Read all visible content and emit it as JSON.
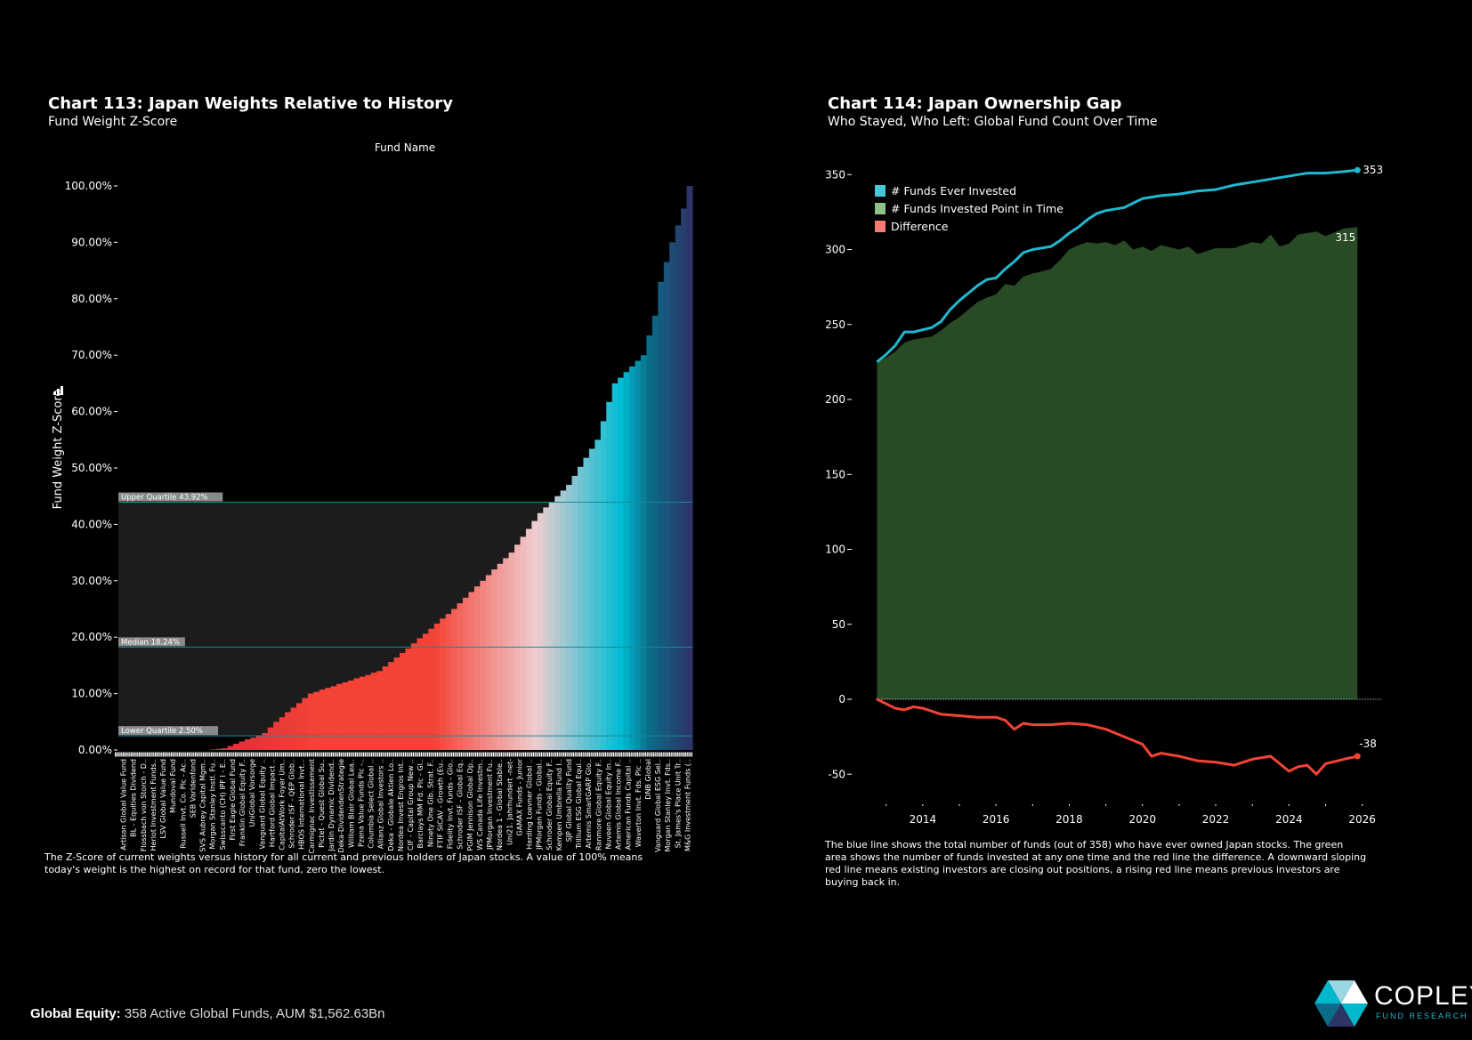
{
  "left": {
    "title": "Chart 113:  Japan Weights Relative to History",
    "subtitle": "Fund Weight Z-Score",
    "caption": "The Z-Score of current weights versus history for all current and previous holders of Japan stocks.  A value of 100% means today's weight is the highest on record for that fund, zero the lowest."
  },
  "right": {
    "title": "Chart 114:  Japan Ownership Gap",
    "subtitle": "Who Stayed, Who Left: Global Fund Count Over Time",
    "caption": "The blue line shows the total number of funds (out of 358) who have ever owned Japan stocks.  The green area shows the number of funds invested at any one time and the red line the difference.  A downward sloping red line means existing investors are closing out positions, a rising red line means previous investors are buying back in."
  },
  "footer": {
    "label": "Global Equity:",
    "text": "358 Active Global Funds, AUM $1,562.63Bn"
  },
  "logo": {
    "name": "COPLEY",
    "sub": "FUND RESEARCH"
  },
  "chart_data": [
    {
      "type": "bar",
      "xlabel": "Fund Name",
      "ylabel": "Fund Weight  Z-Score",
      "ylim": [
        0,
        100
      ],
      "yticks": [
        "0.00%",
        "10.00%",
        "20.00%",
        "30.00%",
        "40.00%",
        "50.00%",
        "60.00%",
        "70.00%",
        "80.00%",
        "90.00%",
        "100.00%"
      ],
      "reference_lines": [
        {
          "label": "Upper Quartile 43.92%",
          "value": 43.92
        },
        {
          "label": "Median 18.24%",
          "value": 18.24
        },
        {
          "label": "Lower Quartile 2.50%",
          "value": 2.5
        }
      ],
      "category_labels": [
        "Artisan Global Value Fund",
        "BL - Equities Dividend",
        "Flossbach von Storch - D..",
        "Heriot Investment Funds..",
        "LSV Global Value Fund",
        "Mundoval Fund",
        "Russell Invt. Co. Plc - Ac..",
        "SEB Varldenfond",
        "SVS Aubrey Capital Mgm..",
        "Morgan Stanley Instl. Fu..",
        "Swisscanto (CH) IPF I - E..",
        "First Eagle Global Fund",
        "Franklin Global Equity F..",
        "UniGlobal Vorsorge",
        "Vanguard Global Equity ..",
        "Hartford Global Impact ..",
        "CapitalAtWork Foyer Um..",
        "Schroder ISF - QEP Glob..",
        "HBOS International Invt...",
        "Carmignac Investissement",
        "Pictet - Quest Global Su..",
        "Jardin Dynamic Dividend..",
        "Deka-DividendenStrategie",
        "William Blair Global Lea..",
        "Pzena Value Funds Plc -..",
        "Columbia Select Global ..",
        "Allianz Global Investors ..",
        "Deka - Globale Aktien Lo..",
        "Nordea Invest Engros Int..",
        "CIF - Capital Group New ..",
        "Barclays MM Fd. Plc - Gl..",
        "Ninety One Glb. Strat. F..",
        "FTIF SICAV - Growth (Eu..",
        "Fidelity Invt. Funds - Glo..",
        "Schroder ISF - Global Eq..",
        "PGIM Jennison Global Op..",
        "WS Canada Life Investm..",
        "JPMorgan Investment Fu..",
        "Nordea 1 - Global Stable..",
        "Uni21. Jahrhundert -net-",
        "GAMAX Funds - Junior",
        "Harding Loevner Global ..",
        "JPMorgan Funds - Global..",
        "Schroder Global Equity F..",
        "Kempen Umbrella Fund I..",
        "SJP Global Quality Fund",
        "Trillium ESG Global Equi..",
        "Artemis SmartGARP Glo..",
        "Ranmore Global Equity F..",
        "Nuveen Global Equity In..",
        "Artemis Global Income F..",
        "American Funds Capital ..",
        "Waverton Invt. Fds. Plc ..",
        "DNB Global",
        "Vanguard Global ESG Sel..",
        "Morgan Stanley Invt. Fds..",
        "St. James's Place Unit Tr..",
        "M&G Investment Funds (.."
      ],
      "values": [
        0,
        0,
        0,
        0,
        0,
        0,
        0,
        0,
        0,
        0,
        0,
        0,
        0,
        0,
        0,
        0,
        0.1,
        0.2,
        0.3,
        0.7,
        1.1,
        1.5,
        1.9,
        2.2,
        2.6,
        3.0,
        4.0,
        5.0,
        5.8,
        6.7,
        7.5,
        8.3,
        9.2,
        10.0,
        10.3,
        10.7,
        11.0,
        11.3,
        11.7,
        12.0,
        12.3,
        12.7,
        13.0,
        13.3,
        13.7,
        14.0,
        14.8,
        15.6,
        16.4,
        17.2,
        18.0,
        18.9,
        19.8,
        20.6,
        21.5,
        22.4,
        23.3,
        24.1,
        25.0,
        26.0,
        27.0,
        28.0,
        29.0,
        30.0,
        31.0,
        32.0,
        33.0,
        34.0,
        35.0,
        36.4,
        37.8,
        39.2,
        40.6,
        42.0,
        43.0,
        44.0,
        45.0,
        46.0,
        47.0,
        48.6,
        50.2,
        51.8,
        53.4,
        55.0,
        58.3,
        61.7,
        65.0,
        66.0,
        67.0,
        68.0,
        69.0,
        70.0,
        73.5,
        77.0,
        83.0,
        86.5,
        90.0,
        93.0,
        96.0,
        100.0
      ],
      "colors": {
        "low": "#c21a3c",
        "mid": "#f44336",
        "pale": "#efcdd0",
        "cyan": "#00bcd4",
        "teal": "#0b6b88",
        "navy": "#2c3566",
        "band": "#1c1c1c",
        "refline": "#178a98"
      }
    },
    {
      "type": "area",
      "ylim": [
        -60,
        360
      ],
      "xlim": [
        2012.75,
        2026
      ],
      "yticks": [
        350,
        300,
        250,
        200,
        150,
        100,
        50,
        0,
        -50
      ],
      "xticks": [
        2014,
        2016,
        2018,
        2020,
        2022,
        2024,
        2026
      ],
      "legend_position": "top-left",
      "series": [
        {
          "name": "# Funds Ever Invested",
          "color": "#1fb8cf",
          "end_label": "353",
          "points": [
            [
              2012.75,
              225
            ],
            [
              2013.0,
              230
            ],
            [
              2013.25,
              236
            ],
            [
              2013.5,
              245
            ],
            [
              2013.75,
              245
            ],
            [
              2014.25,
              248
            ],
            [
              2014.5,
              252
            ],
            [
              2014.75,
              260
            ],
            [
              2015.0,
              266
            ],
            [
              2015.25,
              271
            ],
            [
              2015.5,
              276
            ],
            [
              2015.75,
              280
            ],
            [
              2016.0,
              281
            ],
            [
              2016.25,
              287
            ],
            [
              2016.5,
              292
            ],
            [
              2016.75,
              298
            ],
            [
              2017.0,
              300
            ],
            [
              2017.5,
              302
            ],
            [
              2017.75,
              306
            ],
            [
              2018.0,
              311
            ],
            [
              2018.25,
              315
            ],
            [
              2018.5,
              320
            ],
            [
              2018.75,
              324
            ],
            [
              2019.0,
              326
            ],
            [
              2019.5,
              328
            ],
            [
              2019.75,
              331
            ],
            [
              2020.0,
              334
            ],
            [
              2020.5,
              336
            ],
            [
              2021.0,
              337
            ],
            [
              2021.5,
              339
            ],
            [
              2022.0,
              340
            ],
            [
              2022.5,
              343
            ],
            [
              2023.0,
              345
            ],
            [
              2023.5,
              347
            ],
            [
              2024.0,
              349
            ],
            [
              2024.5,
              351
            ],
            [
              2025.0,
              351
            ],
            [
              2025.5,
              352
            ],
            [
              2025.87,
              353
            ]
          ]
        },
        {
          "name": "# Funds Invested Point in Time",
          "color": "#8dc185",
          "fill": "#284a24",
          "end_label": "315",
          "points": [
            [
              2012.75,
              225
            ],
            [
              2013.0,
              228
            ],
            [
              2013.25,
              232
            ],
            [
              2013.5,
              238
            ],
            [
              2013.75,
              240
            ],
            [
              2014.25,
              242
            ],
            [
              2014.5,
              246
            ],
            [
              2014.75,
              251
            ],
            [
              2015.0,
              255
            ],
            [
              2015.25,
              260
            ],
            [
              2015.5,
              265
            ],
            [
              2015.75,
              268
            ],
            [
              2016.0,
              270
            ],
            [
              2016.25,
              277
            ],
            [
              2016.5,
              276
            ],
            [
              2016.75,
              282
            ],
            [
              2017.0,
              284
            ],
            [
              2017.5,
              287
            ],
            [
              2017.75,
              293
            ],
            [
              2018.0,
              300
            ],
            [
              2018.25,
              303
            ],
            [
              2018.5,
              305
            ],
            [
              2018.75,
              304
            ],
            [
              2019.0,
              305
            ],
            [
              2019.25,
              303
            ],
            [
              2019.5,
              306
            ],
            [
              2019.75,
              300
            ],
            [
              2020.0,
              302
            ],
            [
              2020.25,
              299
            ],
            [
              2020.5,
              303
            ],
            [
              2021.0,
              300
            ],
            [
              2021.25,
              302
            ],
            [
              2021.5,
              297
            ],
            [
              2022.0,
              301
            ],
            [
              2022.5,
              301
            ],
            [
              2023.0,
              305
            ],
            [
              2023.25,
              304
            ],
            [
              2023.5,
              310
            ],
            [
              2023.75,
              302
            ],
            [
              2024.0,
              304
            ],
            [
              2024.25,
              310
            ],
            [
              2024.75,
              312
            ],
            [
              2025.0,
              309
            ],
            [
              2025.5,
              314
            ],
            [
              2025.87,
              315
            ]
          ]
        },
        {
          "name": "Difference",
          "color": "#f44336",
          "end_label": "-38",
          "points": [
            [
              2012.75,
              0
            ],
            [
              2013.0,
              -3
            ],
            [
              2013.25,
              -6
            ],
            [
              2013.5,
              -7
            ],
            [
              2013.75,
              -5
            ],
            [
              2014.0,
              -6
            ],
            [
              2014.25,
              -8
            ],
            [
              2014.5,
              -10
            ],
            [
              2015.0,
              -11
            ],
            [
              2015.5,
              -12
            ],
            [
              2016.0,
              -12
            ],
            [
              2016.25,
              -14
            ],
            [
              2016.5,
              -20
            ],
            [
              2016.75,
              -16
            ],
            [
              2017.0,
              -17
            ],
            [
              2017.5,
              -17
            ],
            [
              2018.0,
              -16
            ],
            [
              2018.5,
              -17
            ],
            [
              2019.0,
              -20
            ],
            [
              2019.5,
              -25
            ],
            [
              2020.0,
              -30
            ],
            [
              2020.25,
              -38
            ],
            [
              2020.5,
              -36
            ],
            [
              2021.0,
              -38
            ],
            [
              2021.5,
              -41
            ],
            [
              2022.0,
              -42
            ],
            [
              2022.5,
              -44
            ],
            [
              2023.0,
              -40
            ],
            [
              2023.5,
              -38
            ],
            [
              2024.0,
              -48
            ],
            [
              2024.25,
              -45
            ],
            [
              2024.5,
              -44
            ],
            [
              2024.75,
              -50
            ],
            [
              2025.0,
              -43
            ],
            [
              2025.5,
              -40
            ],
            [
              2025.87,
              -38
            ]
          ]
        }
      ]
    }
  ]
}
